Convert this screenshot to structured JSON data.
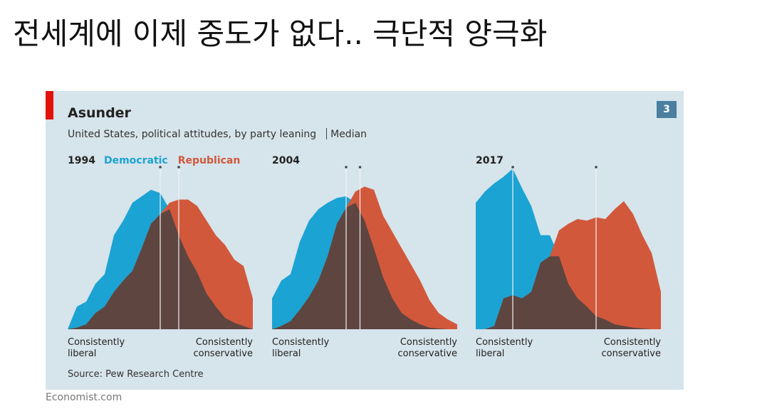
{
  "heading": "전세계에 이제 중도가 없다.. 극단적 양극화",
  "figure": {
    "title": "Asunder",
    "subtitle": "United States, political attitudes, by party leaning",
    "median_label": "Median",
    "badge": "3",
    "source": "Source: Pew Research Centre",
    "credit": "Economist.com"
  },
  "chart_data": [
    {
      "type": "area",
      "title": "1994",
      "xlabel_left": "Consistently liberal",
      "xlabel_right": "Consistently conservative",
      "ylim": [
        0,
        100
      ],
      "overlap_color": "#5e4540",
      "series": [
        {
          "name": "Democratic",
          "color": "#1ba3d3",
          "median": 10,
          "values": [
            0,
            14,
            17,
            28,
            34,
            58,
            67,
            78,
            82,
            86,
            84,
            74,
            58,
            45,
            35,
            22,
            14,
            7,
            4,
            2,
            0
          ]
        },
        {
          "name": "Republican",
          "color": "#d2583b",
          "median": 12,
          "values": [
            0,
            1,
            3,
            10,
            14,
            23,
            30,
            36,
            50,
            65,
            71,
            78,
            80,
            80,
            76,
            67,
            58,
            52,
            43,
            39,
            19
          ]
        }
      ]
    },
    {
      "type": "area",
      "title": "2004",
      "xlabel_left": "Consistently liberal",
      "xlabel_right": "Consistently conservative",
      "ylim": [
        0,
        100
      ],
      "overlap_color": "#5e4540",
      "series": [
        {
          "color": "#1ba3d3",
          "median": 8,
          "values": [
            19,
            30,
            34,
            54,
            67,
            74,
            78,
            81,
            82,
            78,
            67,
            50,
            32,
            19,
            10,
            6,
            3,
            1,
            0.5,
            0,
            0
          ]
        },
        {
          "color": "#d2583b",
          "median": 9.5,
          "values": [
            0,
            2,
            5,
            12,
            20,
            30,
            45,
            65,
            75,
            85,
            88,
            86,
            70,
            60,
            50,
            40,
            30,
            18,
            10,
            6,
            3
          ]
        }
      ]
    },
    {
      "type": "area",
      "title": "2017",
      "xlabel_left": "Consistently liberal",
      "xlabel_right": "Consistently conservative",
      "ylim": [
        0,
        100
      ],
      "overlap_color": "#5e4540",
      "series": [
        {
          "color": "#1ba3d3",
          "median": 4,
          "values": [
            78,
            85,
            90,
            94,
            99,
            87,
            76,
            58,
            58,
            45,
            28,
            19,
            14,
            8,
            6,
            3,
            2,
            1,
            0.5,
            0,
            0
          ]
        },
        {
          "color": "#d2583b",
          "median": 13,
          "values": [
            0,
            0,
            2,
            19,
            21,
            19,
            23,
            41,
            45,
            61,
            65,
            68,
            67,
            69,
            68,
            74,
            79,
            71,
            58,
            47,
            23
          ]
        }
      ]
    }
  ]
}
